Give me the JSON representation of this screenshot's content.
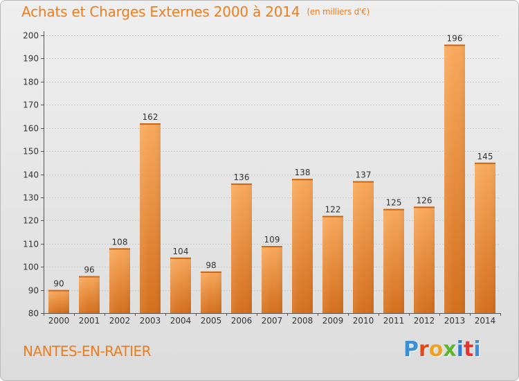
{
  "header": {
    "title": "Achats et Charges Externes 2000 à 2014",
    "unit": "(en milliers d'€)"
  },
  "footer": {
    "town": "NANTES-EN-RATIER",
    "logo_letters": [
      "P",
      "r",
      "o",
      "x",
      "i",
      "t",
      "i"
    ]
  },
  "colors": {
    "accent": "#ee7d1c",
    "bar_light": "#f7a85a",
    "bar_dark": "#d5701c",
    "grid": "#c8c8c8"
  },
  "chart_data": {
    "type": "bar",
    "title": "Achats et Charges Externes 2000 à 2014",
    "subtitle": "(en milliers d'€)",
    "xlabel": "",
    "ylabel": "",
    "ylim": [
      80,
      200
    ],
    "yticks": [
      80,
      90,
      100,
      110,
      120,
      130,
      140,
      150,
      160,
      170,
      180,
      190,
      200
    ],
    "grid": true,
    "categories": [
      "2000",
      "2001",
      "2002",
      "2003",
      "2004",
      "2005",
      "2006",
      "2007",
      "2008",
      "2009",
      "2010",
      "2011",
      "2012",
      "2013",
      "2014"
    ],
    "values": [
      90,
      96,
      108,
      162,
      104,
      98,
      136,
      109,
      138,
      122,
      137,
      125,
      126,
      196,
      145
    ]
  }
}
